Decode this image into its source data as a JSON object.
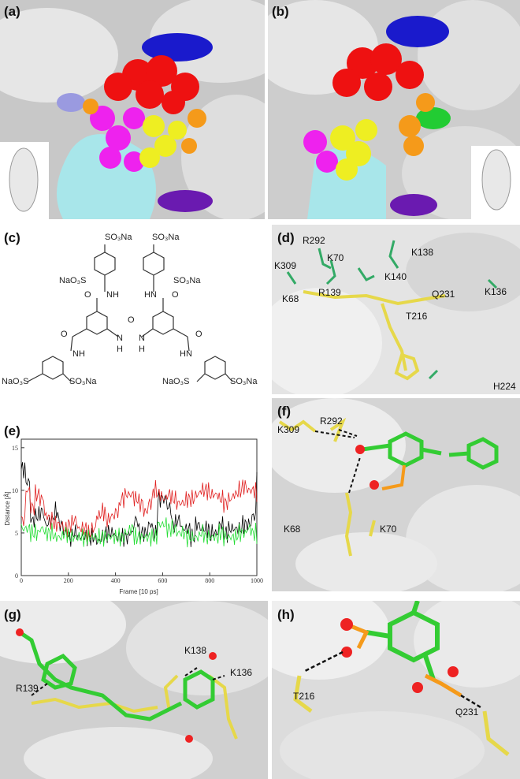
{
  "panels": {
    "a": {
      "label": "(a)"
    },
    "b": {
      "label": "(b)"
    },
    "c": {
      "label": "(c)",
      "groups": {
        "so3na": "SO₃Na",
        "nao3s": "NaO₃S",
        "nh": "NH",
        "hn": "HN",
        "o": "O",
        "n": "N",
        "h": "H"
      }
    },
    "d": {
      "label": "(d)",
      "residues": [
        "R292",
        "K309",
        "K70",
        "K138",
        "K140",
        "K68",
        "R139",
        "Q231",
        "K136",
        "T216",
        "H224"
      ]
    },
    "e": {
      "label": "(e)"
    },
    "f": {
      "label": "(f)",
      "residues": [
        "K309",
        "R292",
        "K68",
        "K70"
      ]
    },
    "g": {
      "label": "(g)",
      "residues": [
        "R139",
        "K138",
        "K136"
      ]
    },
    "h": {
      "label": "(h)",
      "residues": [
        "T216",
        "Q231"
      ]
    }
  },
  "colors": {
    "surface": "#d9d9d9",
    "red": "#ee1111",
    "magenta": "#ee22ee",
    "yellow": "#eeee22",
    "orange": "#f59a1a",
    "blue": "#1a1acc",
    "cyan": "#a8e6ea",
    "green": "#22cc33",
    "purple": "#6a1ab0",
    "carbon_green": "#33cc33",
    "carbon_yellow": "#e6d84a"
  },
  "chart_data": {
    "type": "line",
    "xlabel": "Frame [10 ps]",
    "ylabel": "Distance [Å]",
    "xlim": [
      0,
      1000
    ],
    "ylim": [
      0,
      16
    ],
    "xticks": [
      "0",
      "200",
      "400",
      "600",
      "800",
      "1000"
    ],
    "yticks": [
      "0",
      "5",
      "10",
      "15"
    ],
    "grid": false,
    "x_step": 20,
    "series": [
      {
        "color": "#000000",
        "values": [
          12.5,
          11,
          6.5,
          7,
          7.5,
          6,
          6.5,
          7.5,
          6,
          5,
          4.5,
          5,
          4.5,
          4.5,
          4.5,
          4.5,
          4,
          4.5,
          5,
          5,
          4.5,
          4.5,
          4.5,
          5,
          6.5,
          5,
          5,
          6,
          5,
          9,
          9,
          8,
          6,
          6.5,
          5.5,
          5.5,
          4.5,
          6,
          5.5,
          5.5,
          5,
          5,
          6,
          5,
          5.5,
          5.5,
          5.5,
          6,
          6,
          7,
          12
        ]
      },
      {
        "color": "#e02020",
        "values": [
          6.5,
          10,
          8,
          9.5,
          9,
          7,
          6.5,
          6,
          6,
          5.5,
          6,
          6.5,
          5.5,
          5.5,
          5,
          5.5,
          7,
          7.5,
          6.5,
          7,
          7.5,
          9,
          9.5,
          9.5,
          9,
          8.5,
          7.5,
          8.5,
          10,
          9.5,
          9,
          9.5,
          9,
          8.5,
          8.5,
          9,
          9,
          9.5,
          10,
          10,
          9.5,
          9.5,
          9,
          8.5,
          9,
          9.5,
          10,
          10.5,
          10,
          10,
          9
        ]
      },
      {
        "color": "#22dd33",
        "values": [
          5.5,
          5.5,
          5,
          5,
          5.5,
          5,
          5,
          4.5,
          4.5,
          5,
          4.5,
          4.5,
          4.5,
          4.5,
          4.5,
          4.5,
          4.5,
          4.5,
          4.5,
          4.5,
          4.5,
          4.5,
          5,
          5.5,
          4.5,
          4.5,
          4.5,
          4.5,
          4.5,
          6,
          6,
          5.5,
          5.5,
          5,
          5,
          4.5,
          4.5,
          4.5,
          5,
          4.5,
          4.5,
          4.5,
          5,
          4.5,
          4.5,
          4.5,
          5,
          5,
          5.5,
          5,
          4.5
        ]
      }
    ]
  }
}
